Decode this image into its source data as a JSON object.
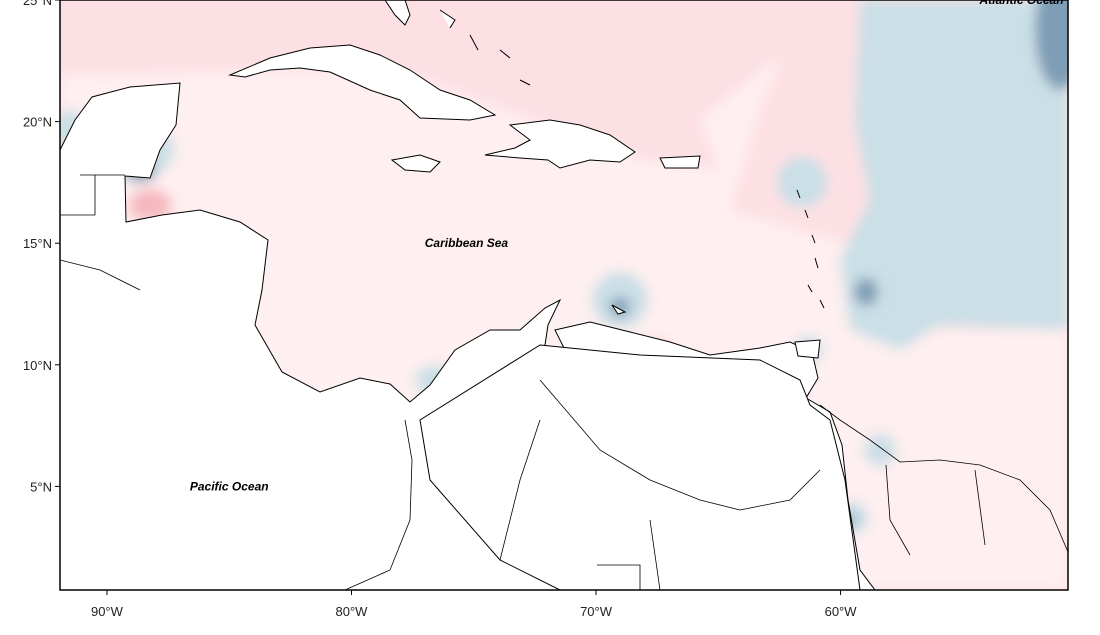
{
  "map": {
    "xlim": [
      -91.92,
      -50.7
    ],
    "ylim": [
      0.74,
      25
    ],
    "xticks": [
      {
        "value": -90,
        "label": "90°W"
      },
      {
        "value": -80,
        "label": "80°W"
      },
      {
        "value": -70,
        "label": "70°W"
      },
      {
        "value": -60,
        "label": "60°W"
      }
    ],
    "yticks": [
      {
        "value": 5,
        "label": "5°N"
      },
      {
        "value": 10,
        "label": "10°N"
      },
      {
        "value": 15,
        "label": "15°N"
      },
      {
        "value": 20,
        "label": "20°N"
      },
      {
        "value": 25,
        "label": "25°N"
      }
    ],
    "labels": [
      {
        "text": "Atlantic Ocean",
        "lon": -52.6,
        "lat": 25
      },
      {
        "text": "Caribbean Sea",
        "lon": -75.3,
        "lat": 15
      },
      {
        "text": "Pacific Ocean",
        "lon": -85,
        "lat": 5
      }
    ]
  }
}
